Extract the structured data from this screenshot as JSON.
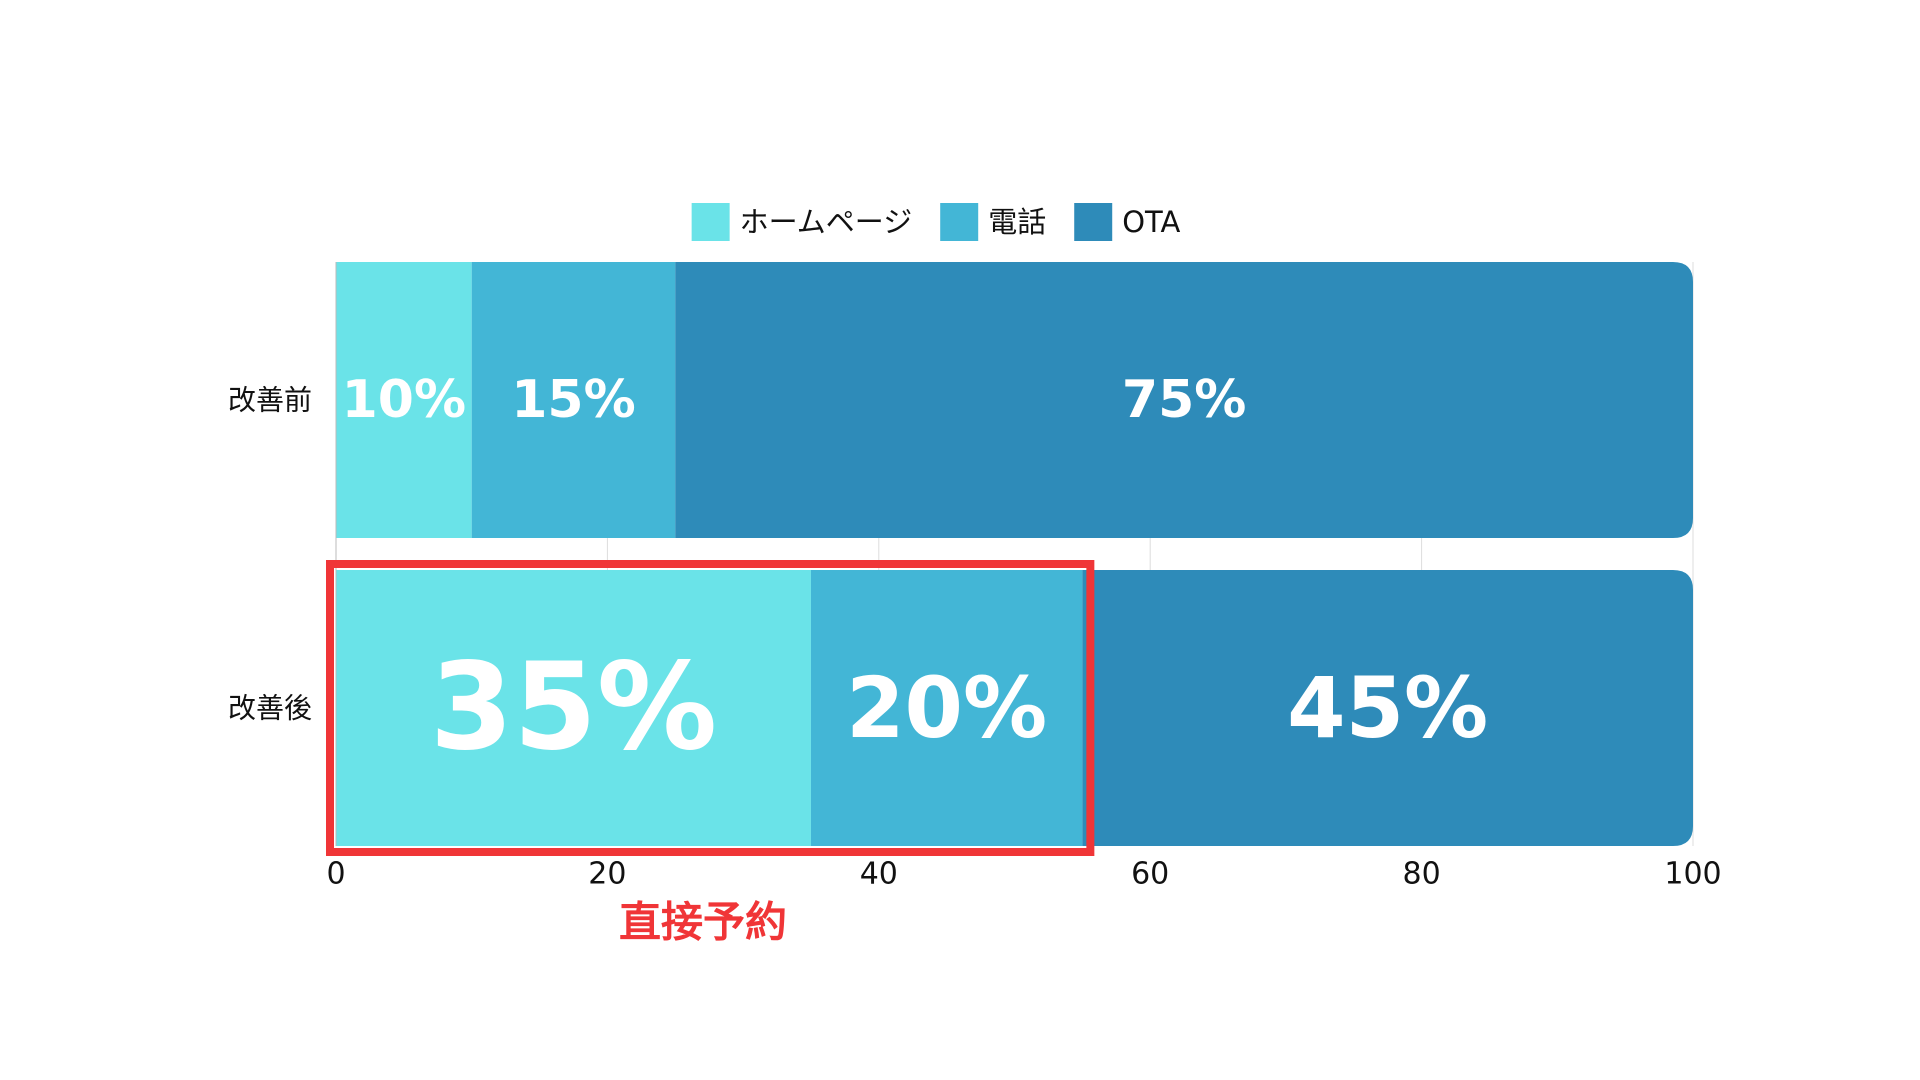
{
  "chart_data": {
    "type": "bar",
    "orientation": "horizontal",
    "stacked": true,
    "categories": [
      "改善前",
      "改善後"
    ],
    "series": [
      {
        "name": "ホームページ",
        "values": [
          10,
          35
        ],
        "labels": [
          "10%",
          "35%"
        ],
        "color": "#6ae3e8"
      },
      {
        "name": "電話",
        "values": [
          15,
          20
        ],
        "labels": [
          "15%",
          "20%"
        ],
        "color": "#43b6d6"
      },
      {
        "name": "OTA",
        "values": [
          75,
          45
        ],
        "labels": [
          "75%",
          "45%"
        ],
        "color": "#2e8bb9"
      }
    ],
    "xlim": [
      0,
      100
    ],
    "xticks": [
      "0",
      "20",
      "40",
      "60",
      "80",
      "100"
    ],
    "grid": true,
    "legend": {
      "position": "top-center"
    },
    "highlight": {
      "category": "改善後",
      "range": [
        0,
        55
      ],
      "label": "直接予約",
      "color": "#f03537"
    },
    "highlight_value_color": "#f03537",
    "gridline_color": "#dddddd"
  }
}
